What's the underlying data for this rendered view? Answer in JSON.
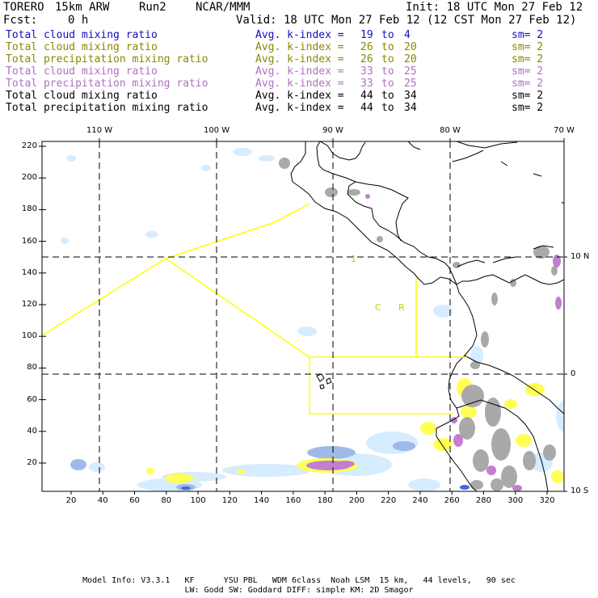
{
  "header": {
    "model": "TORERO",
    "resolution": "15km ARW",
    "run": "Run2",
    "org": "NCAR/MMM",
    "init": "Init: 18 UTC Mon 27 Feb 12",
    "fcst_label": "Fcst:",
    "fcst_value": "0 h",
    "valid": "Valid: 18 UTC Mon 27 Feb 12 (12 CST Mon 27 Feb 12)"
  },
  "legend_rows": [
    {
      "field": "Total cloud mixing ratio",
      "stat": "Avg. k-index =",
      "from": "19",
      "to_label": "to",
      "to": "4",
      "sm": "sm= 2",
      "color": "#1111bb"
    },
    {
      "field": "Total cloud mixing ratio",
      "stat": "Avg. k-index =",
      "from": "26",
      "to_label": "to",
      "to": "20",
      "sm": "sm= 2",
      "color": "#888800"
    },
    {
      "field": "Total precipitation mixing ratio",
      "stat": "Avg. k-index =",
      "from": "26",
      "to_label": "to",
      "to": "20",
      "sm": "sm= 2",
      "color": "#888800"
    },
    {
      "field": "Total cloud mixing ratio",
      "stat": "Avg. k-index =",
      "from": "33",
      "to_label": "to",
      "to": "25",
      "sm": "sm= 2",
      "color": "#b070c0"
    },
    {
      "field": "Total precipitation mixing ratio",
      "stat": "Avg. k-index =",
      "from": "33",
      "to_label": "to",
      "to": "25",
      "sm": "sm= 2",
      "color": "#b070c0"
    },
    {
      "field": "Total cloud mixing ratio",
      "stat": "Avg. k-index =",
      "from": "44",
      "to_label": "to",
      "to": "34",
      "sm": "sm= 2",
      "color": "#000000"
    },
    {
      "field": "Total precipitation mixing ratio",
      "stat": "Avg. k-index =",
      "from": "44",
      "to_label": "to",
      "to": "34",
      "sm": "sm= 2",
      "color": "#000000"
    }
  ],
  "map": {
    "top_lon_labels": [
      "110 W",
      "100 W",
      "90 W",
      "80 W",
      "70 W"
    ],
    "right_lat_labels": [
      "10 N",
      "0",
      "10 S"
    ],
    "left_y_ticks": [
      "220",
      "200",
      "180",
      "160",
      "140",
      "120",
      "100",
      "80",
      "60",
      "40",
      "20"
    ],
    "bottom_x_ticks": [
      "20",
      "40",
      "60",
      "80",
      "100",
      "120",
      "140",
      "160",
      "180",
      "200",
      "220",
      "240",
      "260",
      "280",
      "300",
      "320"
    ],
    "domain_labels": [
      "1",
      "C",
      "R"
    ],
    "colors": {
      "coastline": "#000000",
      "domain_boxes": "#ffff00",
      "grid_dash": "#000000",
      "light_blue": "#d6ecff",
      "blue": "#9fb9e8",
      "dark_blue": "#4169e1",
      "light_yellow": "#f5f58a",
      "yellow": "#ffff55",
      "light_purple": "#dda8e6",
      "purple": "#c37ed0",
      "light_gray": "#d3d3d3",
      "gray": "#a9a9a9"
    }
  },
  "footer": {
    "line1": "Model Info: V3.3.1   KF      YSU PBL   WDM 6class  Noah LSM  15 km,   44 levels,   90 sec",
    "line2": "LW: Godd SW: Goddard DIFF: simple KM: 2D Smagor"
  }
}
